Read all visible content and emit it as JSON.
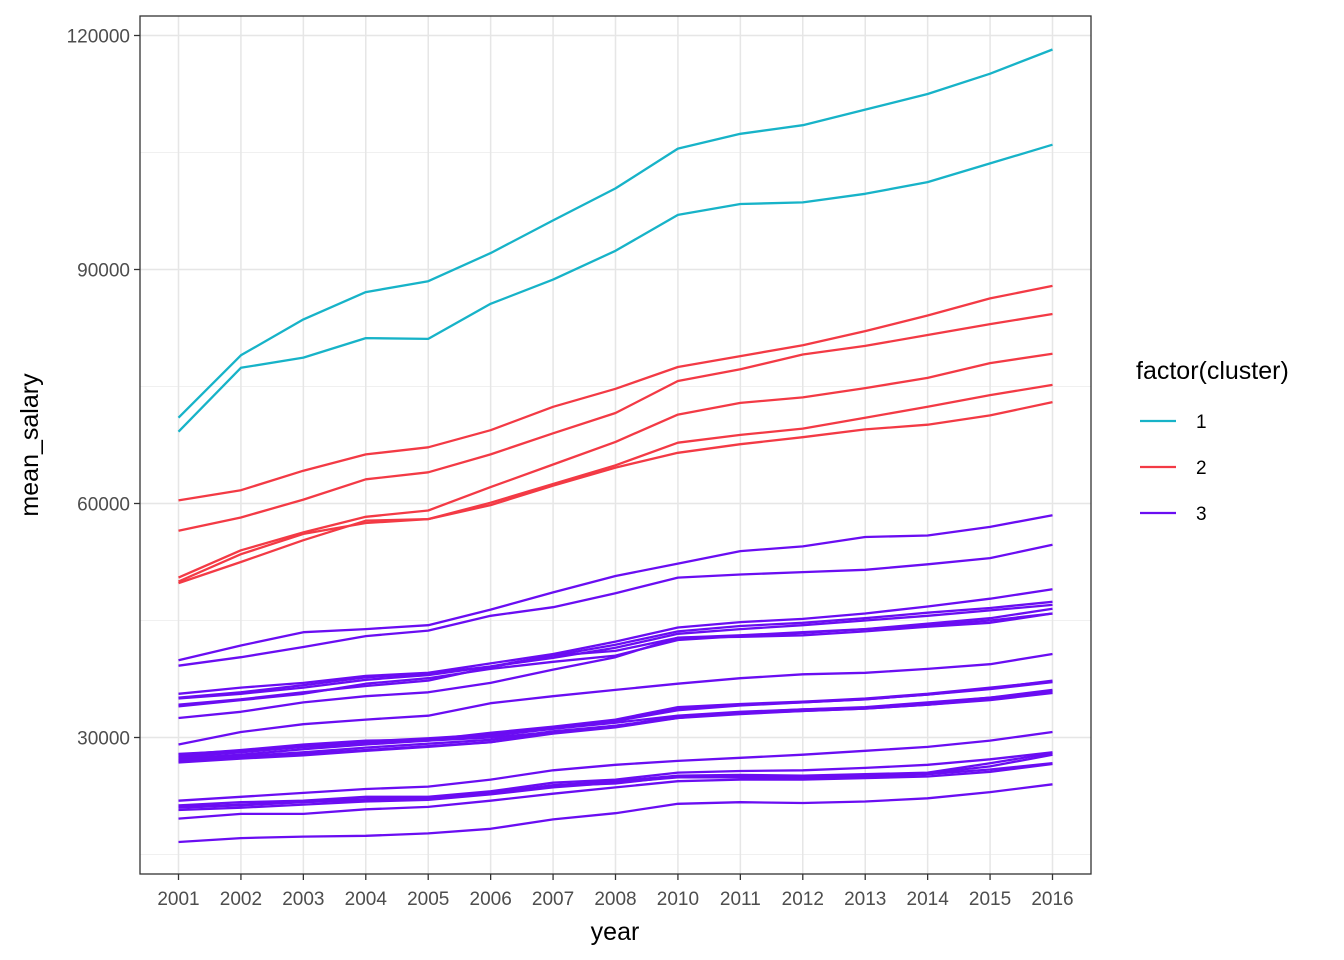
{
  "chart_data": {
    "type": "line",
    "xlabel": "year",
    "ylabel": "mean_salary",
    "x": [
      "2001",
      "2002",
      "2003",
      "2004",
      "2005",
      "2006",
      "2007",
      "2008",
      "2010",
      "2011",
      "2012",
      "2013",
      "2014",
      "2015",
      "2016"
    ],
    "ylim": [
      12500,
      122500
    ],
    "yticks": [
      30000,
      60000,
      90000,
      120000
    ],
    "ytick_labels": [
      "30000",
      "60000",
      "90000",
      "120000"
    ],
    "grid": true,
    "legend": {
      "title": "factor(cluster)",
      "position": "right",
      "entries": [
        {
          "label": "1",
          "color": "#17B3C8"
        },
        {
          "label": "2",
          "color": "#F33A45"
        },
        {
          "label": "3",
          "color": "#6A0DF2"
        }
      ]
    },
    "series": [
      {
        "cluster": "1",
        "values": [
          71000,
          79000,
          83600,
          87100,
          88500,
          92100,
          96300,
          100400,
          105500,
          107400,
          108500,
          110500,
          112500,
          115100,
          118200
        ]
      },
      {
        "cluster": "1",
        "values": [
          69200,
          77400,
          78700,
          81200,
          81100,
          85600,
          88700,
          92400,
          97000,
          98400,
          98600,
          99700,
          101200,
          103600,
          106000
        ]
      },
      {
        "cluster": "2",
        "values": [
          60400,
          61700,
          64200,
          66300,
          67200,
          69400,
          72400,
          74700,
          77500,
          78900,
          80300,
          82100,
          84100,
          86300,
          87900
        ]
      },
      {
        "cluster": "2",
        "values": [
          56500,
          58200,
          60500,
          63100,
          64000,
          66300,
          69000,
          71600,
          75700,
          77200,
          79100,
          80200,
          81600,
          83000,
          84300
        ]
      },
      {
        "cluster": "2",
        "values": [
          50500,
          54000,
          56300,
          58300,
          59100,
          62100,
          65000,
          67900,
          71400,
          72900,
          73600,
          74800,
          76100,
          78000,
          79200
        ]
      },
      {
        "cluster": "2",
        "values": [
          50000,
          53500,
          56100,
          57500,
          58000,
          60100,
          62500,
          64900,
          67800,
          68800,
          69600,
          71000,
          72400,
          73900,
          75200
        ]
      },
      {
        "cluster": "2",
        "values": [
          49800,
          52500,
          55300,
          57800,
          58000,
          59800,
          62300,
          64600,
          66500,
          67600,
          68500,
          69500,
          70100,
          71300,
          73000
        ]
      },
      {
        "cluster": "3",
        "values": [
          39900,
          41800,
          43500,
          43900,
          44400,
          46400,
          48600,
          50700,
          52300,
          53900,
          54500,
          55700,
          55900,
          57000,
          58500
        ]
      },
      {
        "cluster": "3",
        "values": [
          39200,
          40300,
          41600,
          43000,
          43700,
          45600,
          46700,
          48500,
          50500,
          50900,
          51200,
          51500,
          52200,
          53000,
          54700
        ]
      },
      {
        "cluster": "3",
        "values": [
          35600,
          36400,
          37000,
          37900,
          38300,
          39500,
          40700,
          42300,
          44100,
          44800,
          45200,
          45900,
          46800,
          47800,
          49000
        ]
      },
      {
        "cluster": "3",
        "values": [
          35100,
          35800,
          36700,
          37700,
          38200,
          39100,
          40500,
          41900,
          43600,
          44300,
          44700,
          45300,
          46000,
          46600,
          47400
        ]
      },
      {
        "cluster": "3",
        "values": [
          35000,
          35600,
          36400,
          37400,
          38000,
          39100,
          40200,
          41500,
          43300,
          43900,
          44400,
          45000,
          45600,
          46300,
          47000
        ]
      },
      {
        "cluster": "3",
        "values": [
          34200,
          34900,
          35800,
          36600,
          37300,
          39000,
          40500,
          41100,
          42800,
          43100,
          43500,
          43900,
          44400,
          45000,
          45900
        ]
      },
      {
        "cluster": "3",
        "values": [
          34000,
          34800,
          35600,
          36900,
          37600,
          38800,
          39700,
          40500,
          42500,
          43000,
          43400,
          43900,
          44600,
          45300,
          46500
        ]
      },
      {
        "cluster": "3",
        "values": [
          32500,
          33300,
          34500,
          35300,
          35800,
          37000,
          38700,
          40300,
          42800,
          42900,
          43100,
          43600,
          44200,
          44700,
          45900
        ]
      },
      {
        "cluster": "3",
        "values": [
          29100,
          30700,
          31700,
          32300,
          32800,
          34400,
          35300,
          36100,
          36900,
          37600,
          38100,
          38300,
          38800,
          39400,
          40700
        ]
      },
      {
        "cluster": "3",
        "values": [
          27900,
          28300,
          29000,
          29500,
          29900,
          30400,
          31200,
          32100,
          33700,
          34200,
          34500,
          34900,
          35500,
          36300,
          37300
        ]
      },
      {
        "cluster": "3",
        "values": [
          27800,
          28400,
          29100,
          29600,
          29700,
          30600,
          31400,
          32300,
          33900,
          34300,
          34600,
          35000,
          35600,
          36400,
          37200
        ]
      },
      {
        "cluster": "3",
        "values": [
          27700,
          28200,
          28800,
          29400,
          29700,
          30300,
          31200,
          32100,
          33500,
          34100,
          34500,
          34900,
          35500,
          36200,
          37100
        ]
      },
      {
        "cluster": "3",
        "values": [
          27500,
          28100,
          28800,
          29200,
          29600,
          30200,
          31100,
          31900,
          32800,
          33300,
          33600,
          33900,
          34500,
          35100,
          36100
        ]
      },
      {
        "cluster": "3",
        "values": [
          26900,
          27400,
          27900,
          28400,
          28900,
          29400,
          30700,
          31400,
          32700,
          33100,
          33500,
          33800,
          34400,
          35100,
          35900
        ]
      },
      {
        "cluster": "3",
        "values": [
          27300,
          27800,
          28500,
          29100,
          29600,
          30000,
          30700,
          31500,
          32500,
          33200,
          33600,
          33800,
          34300,
          35000,
          36000
        ]
      },
      {
        "cluster": "3",
        "values": [
          27100,
          27600,
          28100,
          28700,
          29200,
          29700,
          30800,
          31500,
          32600,
          33100,
          33400,
          33700,
          34200,
          34900,
          35800
        ]
      },
      {
        "cluster": "3",
        "values": [
          26800,
          27300,
          27700,
          28300,
          28800,
          29400,
          30500,
          31300,
          32500,
          33000,
          33400,
          33700,
          34200,
          34800,
          35700
        ]
      },
      {
        "cluster": "3",
        "values": [
          21900,
          22400,
          22900,
          23400,
          23700,
          24600,
          25800,
          26500,
          27000,
          27400,
          27800,
          28300,
          28800,
          29600,
          30700
        ]
      },
      {
        "cluster": "3",
        "values": [
          21300,
          21700,
          21900,
          22400,
          22400,
          23100,
          24200,
          24600,
          25500,
          25700,
          25800,
          26100,
          26500,
          27200,
          28100
        ]
      },
      {
        "cluster": "3",
        "values": [
          21100,
          21400,
          21800,
          22100,
          22300,
          22900,
          23900,
          24400,
          25100,
          25200,
          25100,
          25300,
          25500,
          26700,
          28000
        ]
      },
      {
        "cluster": "3",
        "values": [
          21000,
          21300,
          21700,
          22000,
          22200,
          22800,
          23800,
          24100,
          25000,
          25000,
          25000,
          25100,
          25400,
          26300,
          27800
        ]
      },
      {
        "cluster": "3",
        "values": [
          20700,
          21000,
          21400,
          21800,
          22000,
          22700,
          23600,
          24200,
          24900,
          24900,
          24800,
          24900,
          25300,
          25900,
          26700
        ]
      },
      {
        "cluster": "3",
        "values": [
          19600,
          20200,
          20200,
          20800,
          21100,
          21900,
          22800,
          23600,
          24400,
          24600,
          24600,
          24800,
          25000,
          25600,
          26600
        ]
      },
      {
        "cluster": "3",
        "values": [
          16600,
          17100,
          17300,
          17400,
          17700,
          18300,
          19500,
          20300,
          21500,
          21700,
          21600,
          21800,
          22200,
          23000,
          24000
        ]
      }
    ]
  }
}
